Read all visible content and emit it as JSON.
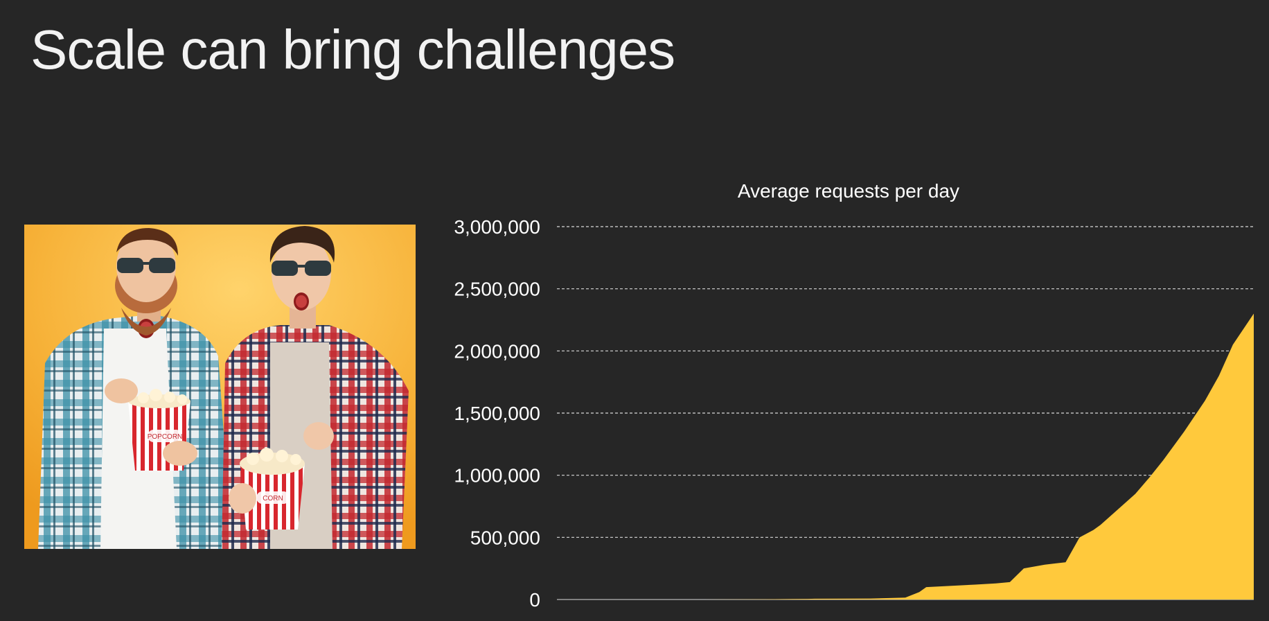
{
  "slide": {
    "title": "Scale can bring challenges"
  },
  "photo": {
    "description_icon": "surprised-moviegoers-photo",
    "background_color": "#F5A623",
    "popcorn_left_text": "POPCORN",
    "popcorn_right_text": "CORN"
  },
  "colors": {
    "background": "#262626",
    "area_fill": "#FFC93C",
    "text": "#FFFFFF",
    "grid": "#D9D9D9"
  },
  "chart_data": {
    "type": "area",
    "title": "Average requests per day",
    "xlabel": "",
    "ylabel": "",
    "ylim": [
      0,
      3000000
    ],
    "yticks": [
      0,
      500000,
      1000000,
      1500000,
      2000000,
      2500000,
      3000000
    ],
    "ytick_labels": [
      "0",
      "500,000",
      "1,000,000",
      "1,500,000",
      "2,000,000",
      "2,500,000",
      "3,000,000"
    ],
    "grid": true,
    "legend": "none",
    "x": [
      0,
      10,
      20,
      30,
      36,
      37,
      45,
      50,
      52,
      53,
      60,
      63,
      65,
      67,
      70,
      73,
      75,
      77,
      78,
      80,
      83,
      85,
      87,
      90,
      93,
      95,
      97,
      100
    ],
    "series": [
      {
        "values": [
          0,
          0,
          0,
          2000,
          5000,
          6000,
          8000,
          15000,
          60000,
          100000,
          120000,
          130000,
          140000,
          250000,
          280000,
          300000,
          500000,
          560000,
          600000,
          700000,
          850000,
          980000,
          1120000,
          1350000,
          1600000,
          1800000,
          2050000,
          2300000
        ]
      }
    ]
  }
}
